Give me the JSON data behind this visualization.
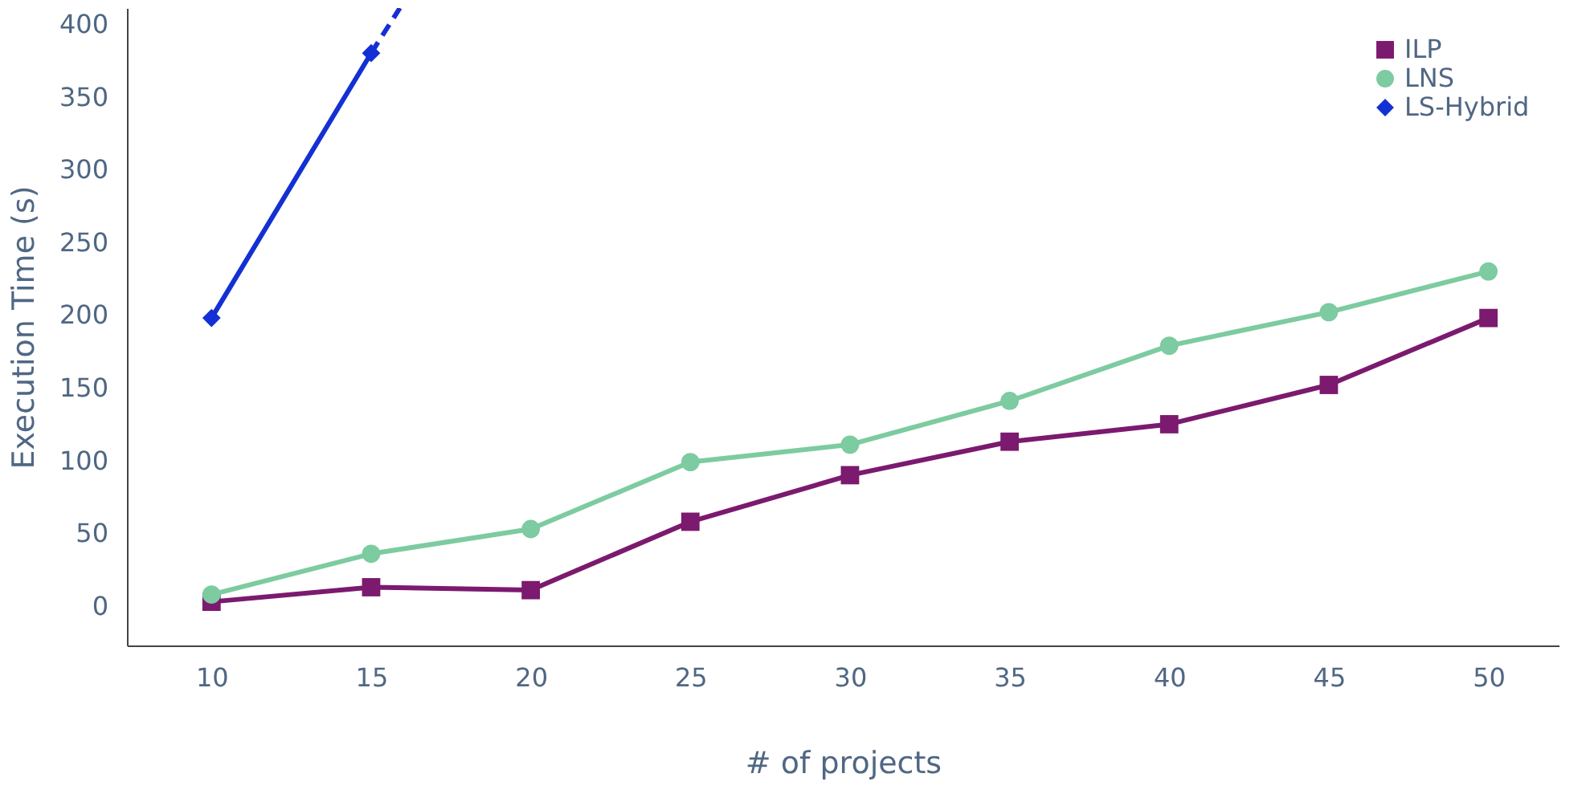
{
  "chart_data": {
    "type": "line",
    "xlabel": "# of projects",
    "ylabel": "Execution Time (s)",
    "x": [
      10,
      15,
      20,
      25,
      30,
      35,
      40,
      45,
      50
    ],
    "series": [
      {
        "name": "ILP",
        "color": "#7b1a6e",
        "marker": "square",
        "values": [
          3,
          13,
          11,
          58,
          90,
          113,
          125,
          152,
          198
        ]
      },
      {
        "name": "LNS",
        "color": "#7dcba0",
        "marker": "circle",
        "values": [
          8,
          36,
          53,
          99,
          111,
          141,
          179,
          202,
          230
        ]
      },
      {
        "name": "LS-Hybrid",
        "color": "#1330d4",
        "marker": "diamond",
        "x": [
          10,
          15
        ],
        "values": [
          198,
          380
        ]
      },
      {
        "color": "#1330d4",
        "marker": "none",
        "line_style": "dashed",
        "x": [
          15,
          15.9
        ],
        "values": [
          380,
          411
        ]
      }
    ],
    "xlim": [
      7.35,
      52.2
    ],
    "ylim": [
      -27,
      411
    ],
    "xticks": [
      10,
      15,
      20,
      25,
      30,
      35,
      40,
      45,
      50
    ],
    "yticks": [
      0,
      50,
      100,
      150,
      200,
      250,
      300,
      350,
      400
    ],
    "grid": false,
    "legend": "top right"
  }
}
